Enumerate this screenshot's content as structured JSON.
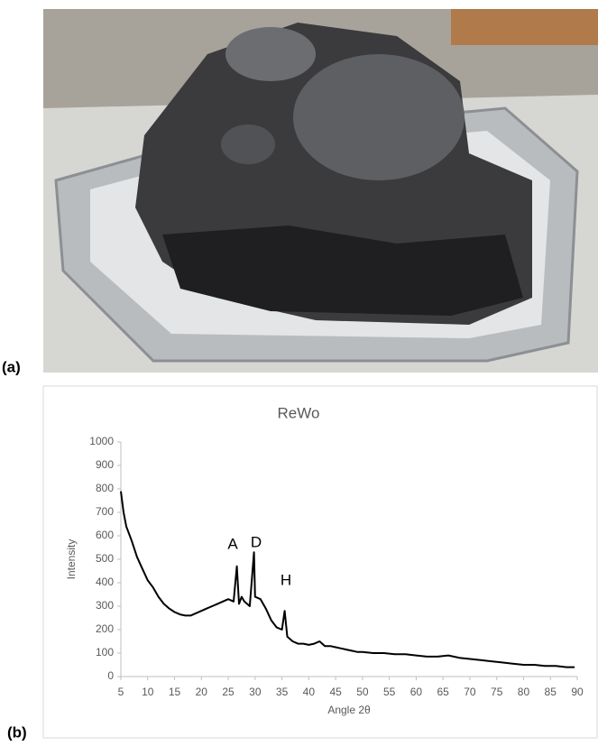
{
  "panel_labels": [
    "(a)",
    "(b)"
  ],
  "chart_data": {
    "type": "line",
    "title": "ReWo",
    "x_label": "Angle 2θ",
    "y_label": "Intensity",
    "color": "#000000",
    "annotations": [
      "A",
      "D",
      "H"
    ],
    "xlim": [
      5,
      90
    ],
    "xticks": [
      5,
      10,
      15,
      20,
      25,
      30,
      35,
      40,
      45,
      50,
      55,
      60,
      65,
      70,
      75,
      80,
      85,
      90
    ],
    "ylim": [
      0,
      1000
    ],
    "yticks": [
      0,
      100,
      200,
      300,
      400,
      500,
      600,
      700,
      800,
      900,
      1000
    ],
    "x": [
      5,
      5.5,
      6,
      7,
      8,
      9,
      10,
      11,
      12,
      13,
      14,
      15,
      16,
      17,
      18,
      19,
      20,
      21,
      22,
      23,
      24,
      25,
      26,
      26.6,
      27,
      27.5,
      28,
      29,
      29.8,
      30,
      31,
      32,
      33,
      34,
      35,
      35.5,
      36,
      37,
      38,
      39,
      40,
      41,
      42,
      43,
      44,
      45,
      46,
      47,
      48,
      49,
      50,
      52,
      54,
      56,
      58,
      60,
      62,
      64,
      66,
      68,
      70,
      72,
      74,
      76,
      78,
      80,
      82,
      84,
      86,
      88,
      89.5
    ],
    "values": [
      790,
      700,
      640,
      580,
      510,
      460,
      410,
      380,
      340,
      310,
      290,
      275,
      265,
      260,
      260,
      270,
      280,
      290,
      300,
      310,
      320,
      330,
      320,
      470,
      310,
      340,
      320,
      300,
      530,
      340,
      330,
      290,
      240,
      210,
      200,
      280,
      170,
      150,
      140,
      140,
      135,
      140,
      150,
      130,
      130,
      125,
      120,
      115,
      110,
      105,
      105,
      100,
      100,
      95,
      95,
      90,
      85,
      85,
      90,
      80,
      75,
      70,
      65,
      60,
      55,
      50,
      50,
      45,
      45,
      40,
      40
    ]
  }
}
